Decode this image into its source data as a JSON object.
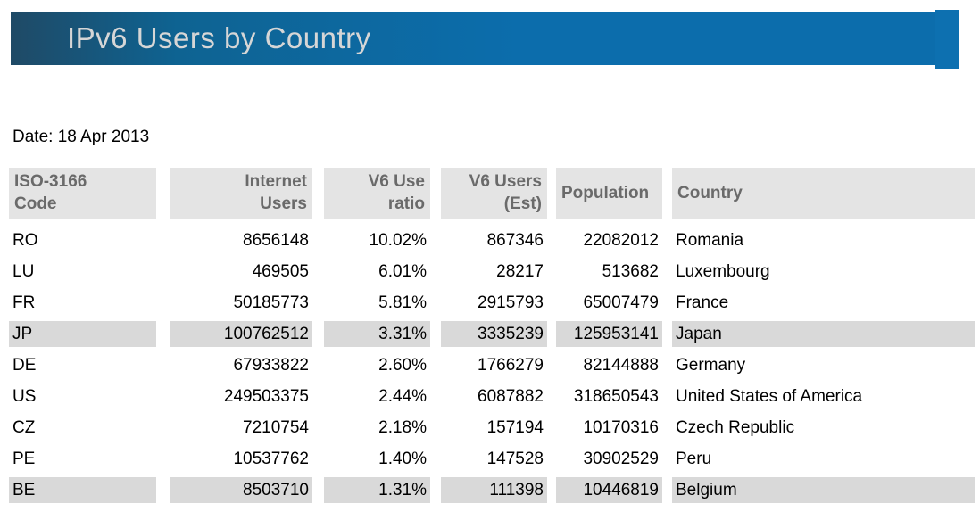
{
  "page": {
    "title": "IPv6 Users by Country",
    "date_label": "Date: 18 Apr 2013"
  },
  "colors": {
    "bar_gradient_start": "#1f4a66",
    "bar_gradient_mid": "#0e6392",
    "bar_blue": "#0c6dac",
    "bar_cap_blue": "#0d70b0",
    "title_text": "#d6d6d6",
    "header_cell_bg": "#e4e4e4",
    "header_text": "#6a6a6a",
    "row_highlight_bg": "#d9d9d9",
    "body_text": "#000000"
  },
  "table": {
    "columns": [
      {
        "id": "code",
        "label": "ISO-3166\nCode",
        "header_align": "left",
        "value_align": "left"
      },
      {
        "id": "internet_users",
        "label": "Internet\nUsers",
        "header_align": "right",
        "value_align": "right"
      },
      {
        "id": "v6_ratio",
        "label": "V6 Use\nratio",
        "header_align": "right",
        "value_align": "right"
      },
      {
        "id": "v6_users",
        "label": "V6 Users\n(Est)",
        "header_align": "right",
        "value_align": "right"
      },
      {
        "id": "population",
        "label": "Population",
        "header_align": "left",
        "value_align": "right"
      },
      {
        "id": "country",
        "label": "Country",
        "header_align": "left",
        "value_align": "left"
      }
    ],
    "rows": [
      {
        "code": "RO",
        "internet_users": "8656148",
        "v6_ratio": "10.02%",
        "v6_users": "867346",
        "population": "22082012",
        "country": "Romania",
        "highlighted": false
      },
      {
        "code": "LU",
        "internet_users": "469505",
        "v6_ratio": "6.01%",
        "v6_users": "28217",
        "population": "513682",
        "country": "Luxembourg",
        "highlighted": false
      },
      {
        "code": "FR",
        "internet_users": "50185773",
        "v6_ratio": "5.81%",
        "v6_users": "2915793",
        "population": "65007479",
        "country": "France",
        "highlighted": false
      },
      {
        "code": "JP",
        "internet_users": "100762512",
        "v6_ratio": "3.31%",
        "v6_users": "3335239",
        "population": "125953141",
        "country": "Japan",
        "highlighted": true
      },
      {
        "code": "DE",
        "internet_users": "67933822",
        "v6_ratio": "2.60%",
        "v6_users": "1766279",
        "population": "82144888",
        "country": "Germany",
        "highlighted": false
      },
      {
        "code": "US",
        "internet_users": "249503375",
        "v6_ratio": "2.44%",
        "v6_users": "6087882",
        "population": "318650543",
        "country": "United States of America",
        "highlighted": false
      },
      {
        "code": "CZ",
        "internet_users": "7210754",
        "v6_ratio": "2.18%",
        "v6_users": "157194",
        "population": "10170316",
        "country": "Czech Republic",
        "highlighted": false
      },
      {
        "code": "PE",
        "internet_users": "10537762",
        "v6_ratio": "1.40%",
        "v6_users": "147528",
        "population": "30902529",
        "country": "Peru",
        "highlighted": false
      },
      {
        "code": "BE",
        "internet_users": "8503710",
        "v6_ratio": "1.31%",
        "v6_users": "111398",
        "population": "10446819",
        "country": "Belgium",
        "highlighted": true
      }
    ]
  },
  "chart_data": {
    "type": "table",
    "title": "IPv6 Users by Country",
    "date": "18 Apr 2013",
    "columns": [
      "ISO-3166 Code",
      "Internet Users",
      "V6 Use ratio",
      "V6 Users (Est)",
      "Population",
      "Country"
    ],
    "rows": [
      [
        "RO",
        8656148,
        "10.02%",
        867346,
        22082012,
        "Romania"
      ],
      [
        "LU",
        469505,
        "6.01%",
        28217,
        513682,
        "Luxembourg"
      ],
      [
        "FR",
        50185773,
        "5.81%",
        2915793,
        65007479,
        "France"
      ],
      [
        "JP",
        100762512,
        "3.31%",
        3335239,
        125953141,
        "Japan"
      ],
      [
        "DE",
        67933822,
        "2.60%",
        1766279,
        82144888,
        "Germany"
      ],
      [
        "US",
        249503375,
        "2.44%",
        6087882,
        318650543,
        "United States of America"
      ],
      [
        "CZ",
        7210754,
        "2.18%",
        157194,
        10170316,
        "Czech Republic"
      ],
      [
        "PE",
        10537762,
        "1.40%",
        147528,
        30902529,
        "Peru"
      ],
      [
        "BE",
        8503710,
        "1.31%",
        111398,
        10446819,
        "Belgium"
      ]
    ],
    "highlighted_rows": [
      "JP",
      "BE"
    ],
    "layout": {
      "header_background": "#e4e4e4",
      "highlight_background": "#d9d9d9",
      "title_bar": "blue-gradient"
    }
  }
}
